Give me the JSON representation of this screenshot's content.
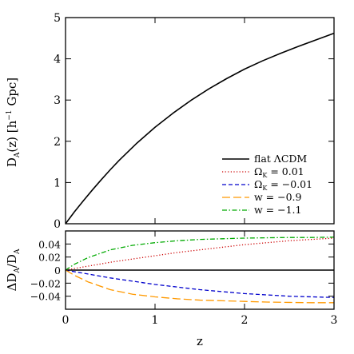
{
  "chart_data": [
    {
      "type": "line",
      "panel": "top",
      "xlabel": "",
      "ylabel": "D_A(z) [h⁻¹ Gpc]",
      "ylabel_parts": {
        "d": "D",
        "sub": "A",
        "rest": "(z)  [h",
        "sup": "−1",
        "unit": " Gpc]"
      },
      "xlim": [
        0,
        3
      ],
      "ylim": [
        0,
        5
      ],
      "yticks": [
        0,
        1,
        2,
        3,
        4,
        5
      ],
      "ytick_labels": [
        "0",
        "1",
        "2",
        "3",
        "4",
        "5"
      ],
      "legend_position": "lower-right",
      "series": [
        {
          "name": "flat ΛCDM",
          "color": "#000000",
          "dash": "solid",
          "x": [
            0,
            0.1,
            0.2,
            0.3,
            0.4,
            0.5,
            0.6,
            0.8,
            1.0,
            1.2,
            1.4,
            1.6,
            1.8,
            2.0,
            2.2,
            2.4,
            2.6,
            2.8,
            3.0
          ],
          "y": [
            0,
            0.29,
            0.56,
            0.82,
            1.07,
            1.31,
            1.54,
            1.96,
            2.34,
            2.68,
            2.99,
            3.27,
            3.52,
            3.75,
            3.95,
            4.13,
            4.3,
            4.46,
            4.62
          ]
        },
        {
          "name": "Ω_K = 0.01",
          "color": "#cc0000",
          "dash": "dotted"
        },
        {
          "name": "Ω_K = −0.01",
          "color": "#0000cc",
          "dash": "dashed"
        },
        {
          "name": "w = −0.9",
          "color": "#ff9900",
          "dash": "longdash"
        },
        {
          "name": "w = −1.1",
          "color": "#00aa00",
          "dash": "dashdot"
        }
      ],
      "legend_labels": [
        {
          "text": "flat ΛCDM"
        },
        {
          "text": "Ω",
          "sub": "K",
          "rest": " = 0.01"
        },
        {
          "text": "Ω",
          "sub": "K",
          "rest": " = −0.01"
        },
        {
          "text": "w = −0.9"
        },
        {
          "text": "w = −1.1"
        }
      ]
    },
    {
      "type": "line",
      "panel": "bottom",
      "xlabel": "z",
      "ylabel": "ΔD_A/D_A",
      "ylabel_parts": {
        "d1": "ΔD",
        "sub1": "A",
        "slash": "/D",
        "sub2": "A"
      },
      "xlim": [
        0,
        3
      ],
      "ylim": [
        -0.06,
        0.06
      ],
      "xticks": [
        0,
        1,
        2,
        3
      ],
      "xtick_labels": [
        "0",
        "1",
        "2",
        "3"
      ],
      "yticks": [
        -0.04,
        -0.02,
        0,
        0.02,
        0.04
      ],
      "ytick_labels": [
        "−0.04",
        "−0.02",
        "0",
        "0.02",
        "0.04"
      ],
      "series": [
        {
          "name": "flat ΛCDM",
          "color": "#000000",
          "dash": "solid",
          "x": [
            0,
            3
          ],
          "y": [
            0,
            0
          ]
        },
        {
          "name": "Ω_K = 0.01",
          "color": "#cc0000",
          "dash": "dotted",
          "x": [
            0,
            0.1,
            0.25,
            0.5,
            0.75,
            1.0,
            1.25,
            1.5,
            1.75,
            2.0,
            2.25,
            2.5,
            2.75,
            3.0
          ],
          "y": [
            0,
            0.0025,
            0.006,
            0.012,
            0.017,
            0.022,
            0.027,
            0.031,
            0.035,
            0.039,
            0.042,
            0.045,
            0.047,
            0.049
          ]
        },
        {
          "name": "Ω_K = −0.01",
          "color": "#0000cc",
          "dash": "dashed",
          "x": [
            0,
            0.1,
            0.25,
            0.5,
            0.75,
            1.0,
            1.25,
            1.5,
            1.75,
            2.0,
            2.25,
            2.5,
            2.75,
            3.0
          ],
          "y": [
            0,
            -0.0025,
            -0.006,
            -0.012,
            -0.017,
            -0.022,
            -0.026,
            -0.03,
            -0.033,
            -0.036,
            -0.038,
            -0.04,
            -0.041,
            -0.042
          ]
        },
        {
          "name": "w = −0.9",
          "color": "#ff9900",
          "dash": "longdash",
          "x": [
            0,
            0.1,
            0.25,
            0.5,
            0.75,
            1.0,
            1.25,
            1.5,
            1.75,
            2.0,
            2.25,
            2.5,
            2.75,
            3.0
          ],
          "y": [
            0,
            -0.008,
            -0.018,
            -0.03,
            -0.037,
            -0.041,
            -0.044,
            -0.046,
            -0.047,
            -0.048,
            -0.049,
            -0.0495,
            -0.05,
            -0.05
          ]
        },
        {
          "name": "w = −1.1",
          "color": "#00aa00",
          "dash": "dashdot",
          "x": [
            0,
            0.1,
            0.25,
            0.5,
            0.75,
            1.0,
            1.25,
            1.5,
            1.75,
            2.0,
            2.25,
            2.5,
            2.75,
            3.0
          ],
          "y": [
            0,
            0.009,
            0.019,
            0.031,
            0.038,
            0.042,
            0.045,
            0.047,
            0.048,
            0.049,
            0.0495,
            0.05,
            0.05,
            0.0505
          ]
        }
      ]
    }
  ]
}
